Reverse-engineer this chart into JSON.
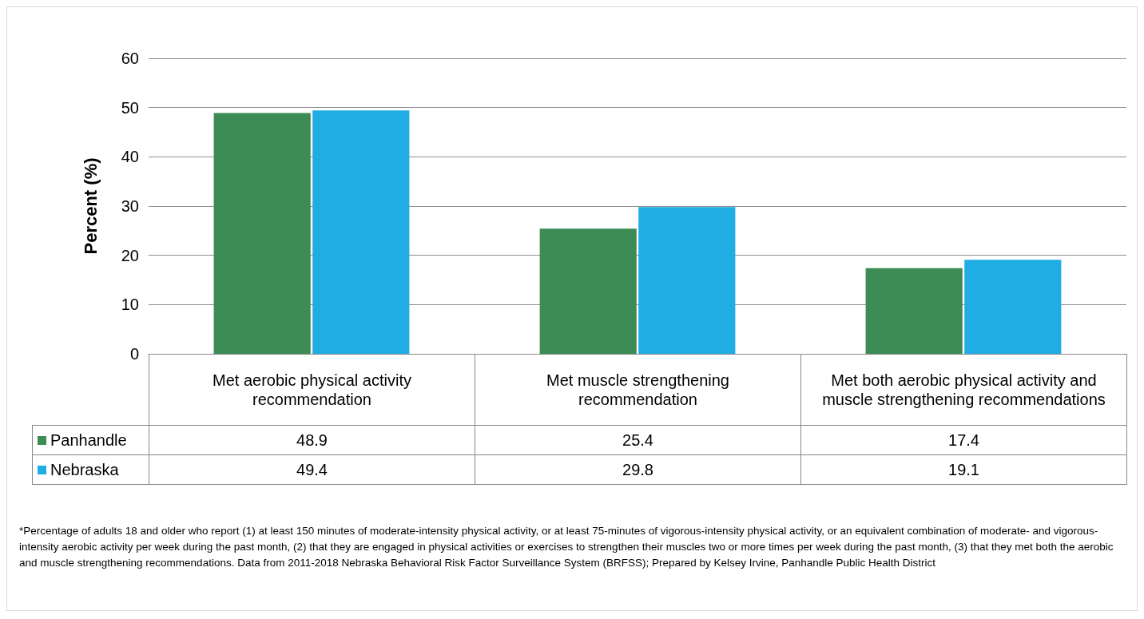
{
  "chart_data": {
    "type": "bar",
    "ylabel": "Percent (%)",
    "categories": [
      "Met aerobic physical activity recommendation",
      "Met muscle strengthening recommendation",
      "Met both aerobic physical activity and muscle strengthening recommendations"
    ],
    "series": [
      {
        "name": "Panhandle",
        "color": "#3d8b55",
        "values": [
          48.9,
          25.4,
          17.4
        ]
      },
      {
        "name": "Nebraska",
        "color": "#1fade3",
        "values": [
          49.4,
          29.8,
          19.1
        ]
      }
    ],
    "ylim": [
      0,
      60
    ],
    "yticks": [
      0,
      10,
      20,
      30,
      40,
      50,
      60
    ],
    "grid": "y",
    "legend": "bottom left",
    "data_labels": true,
    "annotations": [
      "*Percentage of adults 18 and older who report (1) at least 150 minutes of moderate-intensity physical activity, or at least 75-minutes of vigorous-intensity physical activity, or an equivalent combination of moderate- and vigorous-intensity aerobic activity per week during the past month, (2) that they are engaged in physical activities or exercises to strengthen their muscles two or more times per week during the past month, (3) that they met both the aerobic and muscle strengthening recommendations. Data from 2011-2018 Nebraska Behavioral Risk Factor Surveillance System (BRFSS); Prepared by Kelsey Irvine, Panhandle Public Health District"
    ]
  }
}
